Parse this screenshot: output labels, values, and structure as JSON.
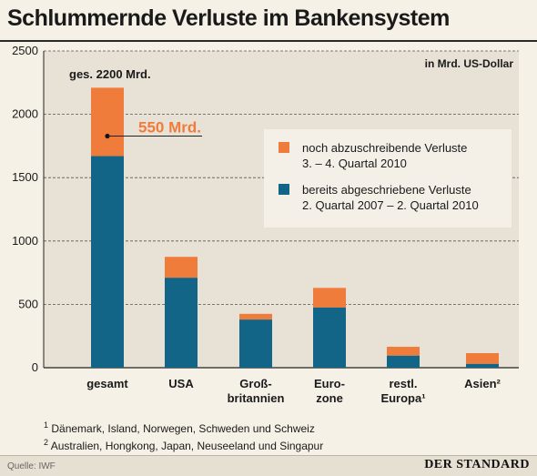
{
  "title": "Schlummernde Verluste im Bankensystem",
  "unit_label": "in Mrd. US-Dollar",
  "footnotes": [
    {
      "marker": "1",
      "text": "Dänemark, Island, Norwegen, Schweden und Schweiz"
    },
    {
      "marker": "2",
      "text": "Australien, Hongkong, Japan, Neuseeland und Singapur"
    }
  ],
  "source": "Quelle: IWF",
  "brand": "DER STANDARD",
  "colors": {
    "written_off": "#136587",
    "to_be_written_off": "#f07c3c",
    "plot_bg": "#e8e2d6",
    "grid": "#555555"
  },
  "chart_data": {
    "type": "bar",
    "stacked": true,
    "categories": [
      "gesamt",
      "USA",
      "Groß-\nbritannien",
      "Euro-\nzone",
      "restl.\nEuropa¹",
      "Asien²"
    ],
    "ylim": [
      0,
      2500
    ],
    "yticks": [
      0,
      500,
      1000,
      1500,
      2000,
      2500
    ],
    "grid": "horizontal, dashed",
    "legend_position": "right, middle",
    "series": [
      {
        "name": "bereits abgeschriebene Verluste 2. Quartal 2007 – 2. Quartal 2010",
        "color": "#136587",
        "values": [
          1670,
          710,
          380,
          475,
          95,
          30
        ]
      },
      {
        "name": "noch abzuschreibende Verluste 3. – 4. Quartal 2010",
        "color": "#f07c3c",
        "values": [
          540,
          165,
          45,
          155,
          70,
          85
        ]
      }
    ],
    "annotations": {
      "total": "ges. 2200 Mrd.",
      "remaining": "550 Mrd."
    }
  }
}
